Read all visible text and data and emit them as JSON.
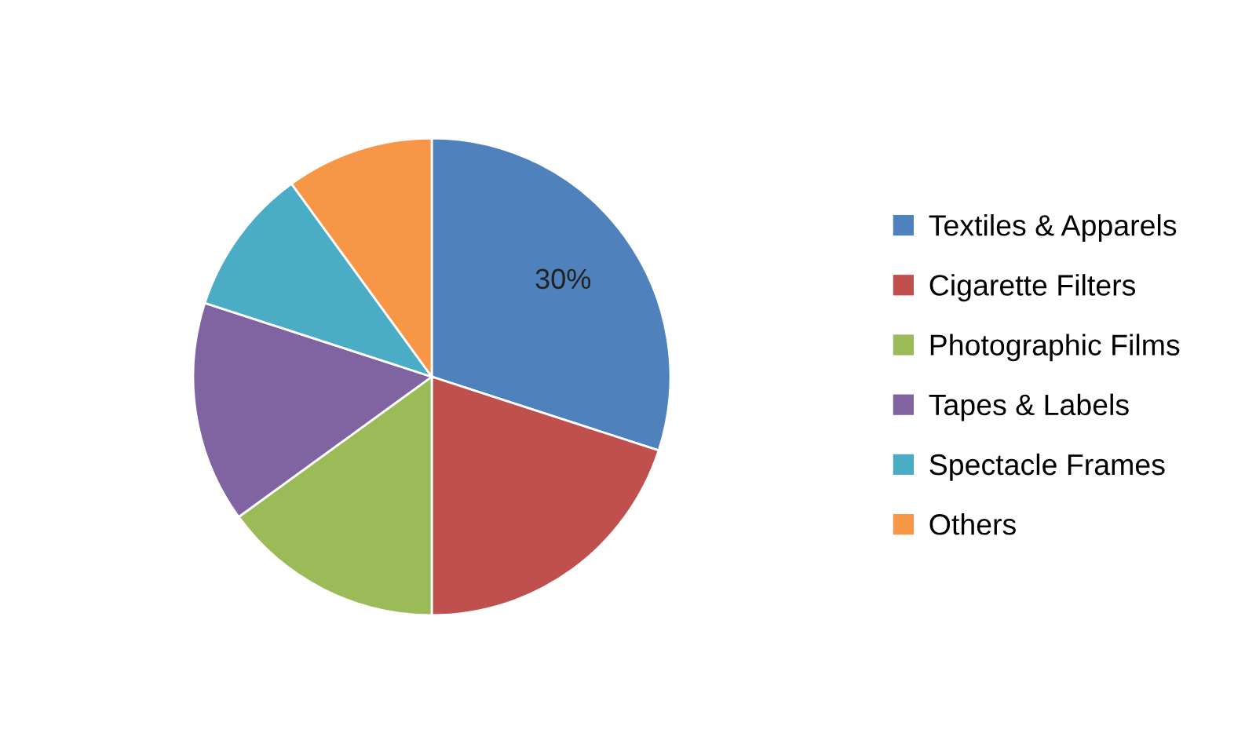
{
  "chart_data": {
    "type": "pie",
    "categories": [
      "Textiles & Apparels",
      "Cigarette Filters",
      "Photographic Films",
      "Tapes & Labels",
      "Spectacle Frames",
      "Others"
    ],
    "values": [
      30,
      20,
      15,
      15,
      10,
      10
    ],
    "colors": [
      "#4f81bd",
      "#c0504d",
      "#9bbb59",
      "#8064a2",
      "#4bacc6",
      "#f79646"
    ],
    "value_labels": [
      "30%",
      null,
      null,
      null,
      null,
      null
    ],
    "legend": "right"
  }
}
